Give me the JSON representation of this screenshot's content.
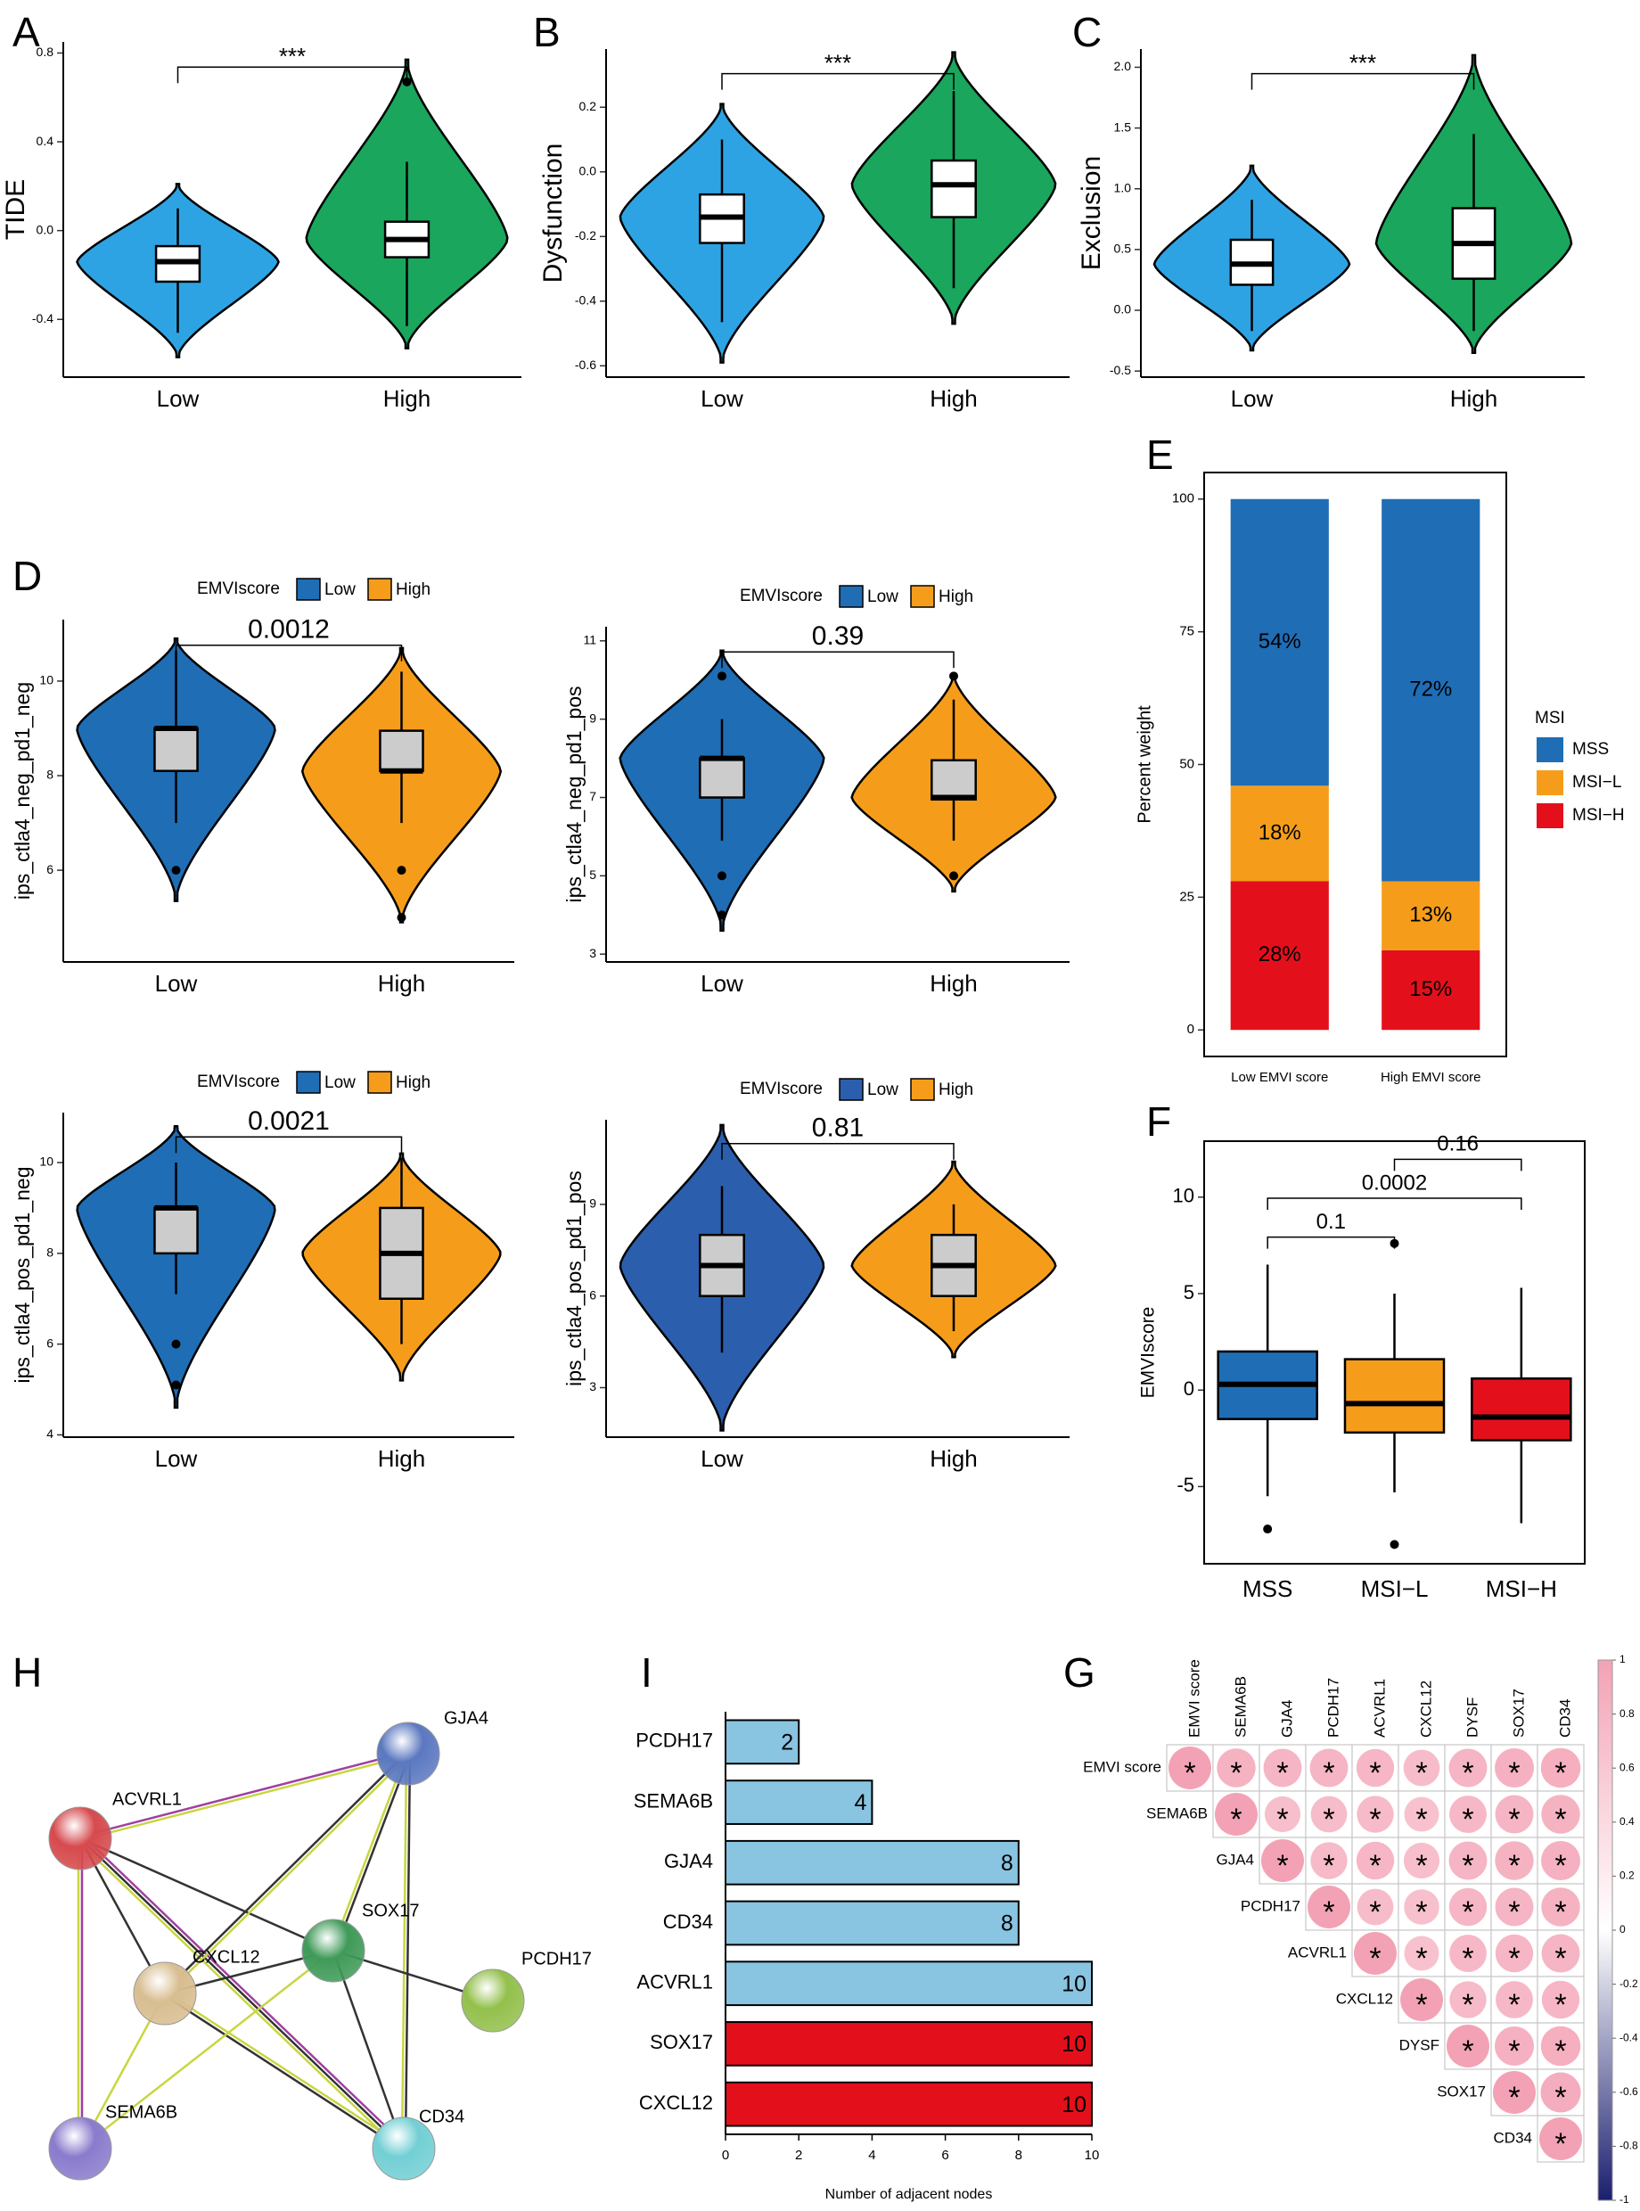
{
  "chart_data": [
    {
      "type": "violin",
      "panel": "A",
      "ylabel": "TIDE",
      "categories": [
        "Low",
        "High"
      ],
      "colors": [
        "#2ea3e3",
        "#1aa65c"
      ],
      "box_fill": "#ffffff",
      "ylim": [
        -0.66,
        0.85
      ],
      "yticks": [
        -0.4,
        {
          "value": 0,
          "label": "0.0"
        },
        0.4,
        0.8
      ],
      "annotation": "***",
      "groups": [
        {
          "violin": [
            -0.57,
            0.21
          ],
          "whiskers": [
            -0.46,
            0.1
          ],
          "box": [
            -0.23,
            -0.07
          ],
          "median": -0.14,
          "outliers": []
        },
        {
          "violin": [
            -0.53,
            0.77
          ],
          "whiskers": [
            -0.43,
            0.31
          ],
          "box": [
            -0.12,
            0.04
          ],
          "median": -0.04,
          "outliers": [
            0.67
          ]
        }
      ]
    },
    {
      "type": "violin",
      "panel": "B",
      "ylabel": "Dysfunction",
      "categories": [
        "Low",
        "High"
      ],
      "colors": [
        "#2ea3e3",
        "#1aa65c"
      ],
      "box_fill": "#ffffff",
      "ylim": [
        -0.635,
        0.38
      ],
      "yticks": [
        -0.6,
        -0.4,
        -0.2,
        {
          "value": 0,
          "label": "0.0"
        },
        0.2
      ],
      "annotation": "***",
      "groups": [
        {
          "violin": [
            -0.59,
            0.21
          ],
          "whiskers": [
            -0.465,
            0.1
          ],
          "box": [
            -0.22,
            -0.07
          ],
          "median": -0.14,
          "outliers": []
        },
        {
          "violin": [
            -0.47,
            0.37
          ],
          "whiskers": [
            -0.36,
            0.25
          ],
          "box": [
            -0.14,
            0.035
          ],
          "median": -0.04,
          "outliers": []
        }
      ]
    },
    {
      "type": "violin",
      "panel": "C",
      "ylabel": "Exclusion",
      "categories": [
        "Low",
        "High"
      ],
      "colors": [
        "#2ea3e3",
        "#1aa65c"
      ],
      "box_fill": "#ffffff",
      "ylim": [
        -0.55,
        2.15
      ],
      "yticks": [
        -0.5,
        {
          "value": 0,
          "label": "0.0"
        },
        0.5,
        {
          "value": 1,
          "label": "1.0"
        },
        1.5,
        {
          "value": 2,
          "label": "2.0"
        }
      ],
      "annotation": "***",
      "groups": [
        {
          "violin": [
            -0.33,
            1.19
          ],
          "whiskers": [
            -0.17,
            0.91
          ],
          "box": [
            0.21,
            0.58
          ],
          "median": 0.38,
          "outliers": []
        },
        {
          "violin": [
            -0.35,
            2.1
          ],
          "whiskers": [
            -0.17,
            1.45
          ],
          "box": [
            0.26,
            0.84
          ],
          "median": 0.55,
          "outliers": []
        }
      ]
    },
    {
      "type": "violin",
      "panel": "D",
      "ylabel": "ips_ctla4_neg_pd1_neg",
      "legend_title": "EMVIscore",
      "categories": [
        "Low",
        "High"
      ],
      "colors": [
        "#1f6db5",
        "#f59d1a"
      ],
      "box_fill": "#cccccc",
      "ylim": [
        4.06,
        11.3
      ],
      "yticks": [
        6,
        8,
        10
      ],
      "annotation": "0.0012",
      "groups": [
        {
          "violin": [
            5.35,
            10.9
          ],
          "whiskers": [
            7.0,
            10.65
          ],
          "box": [
            8.1,
            9.0
          ],
          "median": 9.0,
          "outliers": [
            6.0
          ]
        },
        {
          "violin": [
            4.9,
            10.7
          ],
          "whiskers": [
            7.0,
            10.2
          ],
          "box": [
            8.1,
            8.95
          ],
          "median": 8.1,
          "outliers": [
            6.0,
            5.0
          ]
        }
      ]
    },
    {
      "type": "violin",
      "ylabel": "ips_ctla4_neg_pd1_pos",
      "legend_title": "EMVIscore",
      "categories": [
        "Low",
        "High"
      ],
      "colors": [
        "#1f6db5",
        "#f59d1a"
      ],
      "box_fill": "#cccccc",
      "ylim": [
        2.8,
        11.36
      ],
      "yticks": [
        3,
        5,
        7,
        9,
        11
      ],
      "annotation": "0.39",
      "groups": [
        {
          "violin": [
            3.6,
            10.75
          ],
          "whiskers": [
            5.9,
            9.0
          ],
          "box": [
            7.0,
            8.0
          ],
          "median": 8.0,
          "outliers": [
            10.1,
            5.0,
            4.0
          ]
        },
        {
          "violin": [
            4.6,
            10.15
          ],
          "whiskers": [
            5.9,
            9.5
          ],
          "box": [
            6.95,
            7.95
          ],
          "median": 7.0,
          "outliers": [
            10.1,
            5.0
          ]
        }
      ]
    },
    {
      "type": "violin",
      "ylabel": "ips_ctla4_pos_pd1_neg",
      "legend_title": "EMVIscore",
      "categories": [
        "Low",
        "High"
      ],
      "colors": [
        "#1f6db5",
        "#f59d1a"
      ],
      "box_fill": "#cccccc",
      "ylim": [
        3.95,
        11.1
      ],
      "yticks": [
        4,
        6,
        8,
        10
      ],
      "annotation": "0.0021",
      "groups": [
        {
          "violin": [
            4.6,
            10.8
          ],
          "whiskers": [
            7.1,
            10.0
          ],
          "box": [
            8.0,
            9.0
          ],
          "median": 9.0,
          "outliers": [
            6.0,
            5.1
          ]
        },
        {
          "violin": [
            5.2,
            10.2
          ],
          "whiskers": [
            6.0,
            10.1
          ],
          "box": [
            7.0,
            9.0
          ],
          "median": 8.0,
          "outliers": []
        }
      ]
    },
    {
      "type": "violin",
      "ylabel": "ips_ctla4_pos_pd1_pos",
      "legend_title": "EMVIscore",
      "categories": [
        "Low",
        "High"
      ],
      "colors": [
        "#2b5fad",
        "#f59d1a"
      ],
      "box_fill": "#cccccc",
      "ylim": [
        1.38,
        11.77
      ],
      "yticks": [
        3,
        6,
        9
      ],
      "annotation": "0.81",
      "groups": [
        {
          "violin": [
            1.6,
            11.6
          ],
          "whiskers": [
            4.15,
            9.6
          ],
          "box": [
            6.0,
            8.0
          ],
          "median": 7.0,
          "outliers": []
        },
        {
          "violin": [
            4.0,
            10.4
          ],
          "whiskers": [
            4.85,
            9.0
          ],
          "box": [
            6.0,
            8.0
          ],
          "median": 7.0,
          "outliers": []
        }
      ]
    },
    {
      "type": "stacked_bar",
      "panel": "E",
      "ylabel": "Percent weight",
      "legend_title": "MSI",
      "categories": [
        "Low EMVI score",
        "High EMVI score"
      ],
      "ylim": [
        -5,
        105
      ],
      "yticks": [
        0,
        25,
        50,
        75,
        100
      ],
      "series": [
        {
          "name": "MSS",
          "color": "#1f6db5",
          "values": [
            54,
            72
          ],
          "value_labels": [
            "54%",
            "72%"
          ]
        },
        {
          "name": "MSI−L",
          "color": "#f59d1a",
          "values": [
            18,
            13
          ],
          "value_labels": [
            "18%",
            "13%"
          ]
        },
        {
          "name": "MSI−H",
          "color": "#e3101c",
          "values": [
            28,
            15
          ],
          "value_labels": [
            "28%",
            "15%"
          ]
        }
      ]
    },
    {
      "type": "box",
      "panel": "F",
      "ylabel": "EMVIscore",
      "categories": [
        "MSS",
        "MSI−L",
        "MSI−H"
      ],
      "colors": [
        "#1f6db5",
        "#f59d1a",
        "#e3101c"
      ],
      "ylim": [
        -9.0,
        12.9
      ],
      "yticks": [
        -5,
        0,
        5,
        10
      ],
      "groups": [
        {
          "whiskers": [
            -5.5,
            6.5
          ],
          "box": [
            -1.5,
            2.0
          ],
          "median": 0.3,
          "outliers": [
            -7.2
          ]
        },
        {
          "whiskers": [
            -5.3,
            5.0
          ],
          "box": [
            -2.2,
            1.6
          ],
          "median": -0.7,
          "outliers": [
            7.6,
            -8.0
          ]
        },
        {
          "whiskers": [
            -6.9,
            5.3
          ],
          "box": [
            -2.6,
            0.6
          ],
          "median": -1.4,
          "outliers": []
        }
      ],
      "comparisons": [
        {
          "between": [
            "MSS",
            "MSI−L"
          ],
          "label": "0.1"
        },
        {
          "between": [
            "MSS",
            "MSI−H"
          ],
          "label": "0.0002"
        },
        {
          "between": [
            "MSI−L",
            "MSI−H"
          ],
          "label": "0.16"
        }
      ]
    },
    {
      "type": "hbar",
      "panel": "I",
      "xlabel": "Number of adjacent nodes",
      "categories": [
        "PCDH17",
        "SEMA6B",
        "GJA4",
        "CD34",
        "ACVRL1",
        "SOX17",
        "CXCL12"
      ],
      "values": [
        2,
        4,
        8,
        8,
        10,
        10,
        10
      ],
      "colors": [
        "#89c4e1",
        "#89c4e1",
        "#89c4e1",
        "#89c4e1",
        "#89c4e1",
        "#e3101c",
        "#e3101c"
      ],
      "xlim": [
        0,
        10
      ],
      "xticks": [
        0,
        2,
        4,
        6,
        8,
        10
      ]
    },
    {
      "type": "corrplot",
      "panel": "G",
      "labels": [
        "EMVI score",
        "SEMA6B",
        "GJA4",
        "PCDH17",
        "ACVRL1",
        "CXCL12",
        "DYSF",
        "SOX17",
        "CD34"
      ],
      "values": [
        [
          1,
          0.82,
          0.8,
          0.8,
          0.78,
          0.72,
          0.8,
          0.84,
          0.86
        ],
        [
          null,
          1,
          0.7,
          0.72,
          0.74,
          0.66,
          0.76,
          0.8,
          0.82
        ],
        [
          null,
          null,
          1,
          0.74,
          0.78,
          0.7,
          0.8,
          0.82,
          0.84
        ],
        [
          null,
          null,
          null,
          1,
          0.72,
          0.68,
          0.78,
          0.8,
          0.82
        ],
        [
          null,
          null,
          null,
          null,
          1,
          0.66,
          0.76,
          0.78,
          0.8
        ],
        [
          null,
          null,
          null,
          null,
          null,
          1,
          0.74,
          0.76,
          0.78
        ],
        [
          null,
          null,
          null,
          null,
          null,
          null,
          1,
          0.84,
          0.86
        ],
        [
          null,
          null,
          null,
          null,
          null,
          null,
          null,
          1,
          0.88
        ],
        [
          null,
          null,
          null,
          null,
          null,
          null,
          null,
          null,
          1
        ]
      ],
      "stars": [
        [
          "*",
          "*",
          "*",
          "*",
          "*",
          "*",
          "*",
          "*",
          "*"
        ],
        [
          null,
          "*",
          "*",
          "*",
          "*",
          "*",
          "*",
          "*",
          "*"
        ],
        [
          null,
          null,
          "*",
          "*",
          "*",
          "*",
          "*",
          "*",
          "*"
        ],
        [
          null,
          null,
          null,
          "*",
          "*",
          "*",
          "*",
          "*",
          "*"
        ],
        [
          null,
          null,
          null,
          null,
          "*",
          "*",
          "*",
          "*",
          "*"
        ],
        [
          null,
          null,
          null,
          null,
          null,
          "*",
          "*",
          "*",
          "*"
        ],
        [
          null,
          null,
          null,
          null,
          null,
          null,
          "*",
          "*",
          "*"
        ],
        [
          null,
          null,
          null,
          null,
          null,
          null,
          null,
          "*",
          "*"
        ],
        [
          null,
          null,
          null,
          null,
          null,
          null,
          null,
          null,
          "*"
        ]
      ],
      "clim": [
        -1,
        1
      ],
      "cticks": [
        -1,
        -0.8,
        -0.6,
        -0.4,
        -0.2,
        0,
        0.2,
        0.4,
        0.6,
        0.8,
        1
      ]
    }
  ],
  "network": {
    "panel": "H",
    "nodes": [
      "GJA4",
      "ACVRL1",
      "SOX17",
      "CXCL12",
      "PCDH17",
      "SEMA6B",
      "CD34"
    ]
  }
}
